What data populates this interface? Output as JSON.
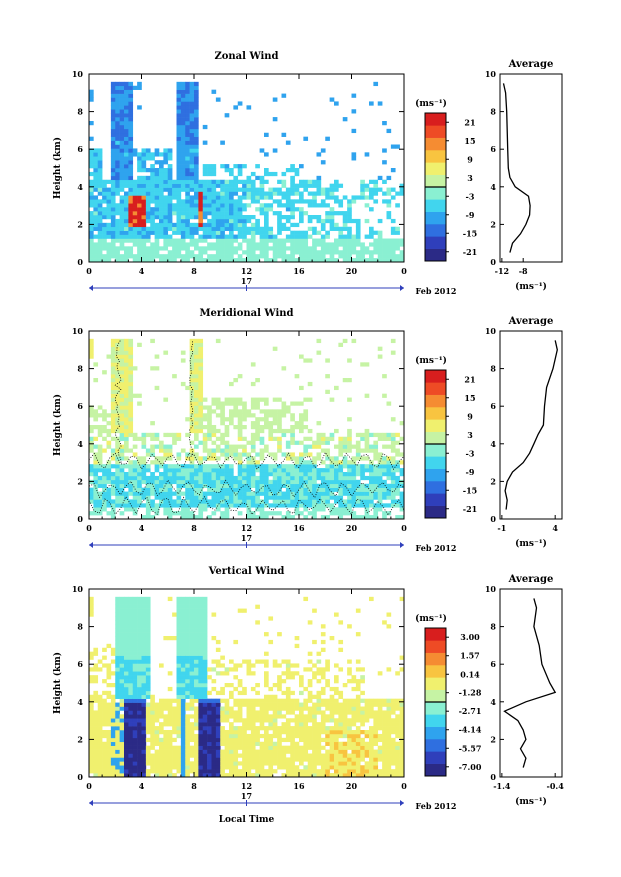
{
  "figure": {
    "x_axis_label": "Local Time",
    "date_label": "Feb 2012",
    "day_label": "17"
  },
  "colorbar_unit": "(ms⁻¹)",
  "avg_title": "Average",
  "chart_data": [
    {
      "type": "heatmap",
      "title": "Zonal Wind",
      "ylabel": "Height (km)",
      "xlim": [
        0,
        24
      ],
      "ylim": [
        0,
        10
      ],
      "x_ticks": [
        "0",
        "4",
        "8",
        "12",
        "16",
        "20",
        "0"
      ],
      "y_ticks": [
        "0",
        "2",
        "4",
        "6",
        "8",
        "10"
      ],
      "colorbar": {
        "ticks": [
          "21",
          "15",
          "9",
          "3",
          "-3",
          "-9",
          "-15",
          "-21"
        ],
        "range": [
          -24,
          24
        ]
      },
      "avg_profile": {
        "xlim": [
          -12,
          -2
        ],
        "x_ticks": [
          "-12",
          "-8"
        ],
        "height": [
          0.5,
          1.0,
          1.5,
          2.0,
          2.5,
          3.0,
          3.5,
          4.0,
          4.5,
          5.0,
          6.0,
          7.0,
          8.0,
          9.0,
          9.5
        ],
        "values": [
          -10.5,
          -10.0,
          -8.5,
          -7.5,
          -6.8,
          -6.7,
          -7.0,
          -9.5,
          -10.5,
          -10.8,
          -10.9,
          -11.0,
          -11.1,
          -11.3,
          -11.7
        ]
      }
    },
    {
      "type": "heatmap",
      "title": "Meridional Wind",
      "ylabel": "Height (km)",
      "xlim": [
        0,
        24
      ],
      "ylim": [
        0,
        10
      ],
      "x_ticks": [
        "0",
        "4",
        "8",
        "12",
        "16",
        "20",
        "0"
      ],
      "y_ticks": [
        "0",
        "2",
        "4",
        "6",
        "8",
        "10"
      ],
      "colorbar": {
        "ticks": [
          "21",
          "15",
          "9",
          "3",
          "-3",
          "-9",
          "-15",
          "-21"
        ],
        "range": [
          -24,
          24
        ]
      },
      "avg_profile": {
        "xlim": [
          -1,
          4
        ],
        "x_ticks": [
          "-1",
          "4"
        ],
        "height": [
          0.5,
          1.0,
          1.5,
          2.0,
          2.5,
          3.0,
          3.5,
          4.0,
          4.5,
          5.0,
          6.0,
          7.0,
          8.0,
          9.0,
          9.5
        ],
        "values": [
          -0.6,
          -0.5,
          -0.7,
          -0.5,
          0.0,
          1.0,
          1.6,
          2.0,
          2.4,
          2.9,
          3.0,
          3.2,
          3.8,
          4.2,
          4.0
        ]
      }
    },
    {
      "type": "heatmap",
      "title": "Vertical Wind",
      "ylabel": "Height (km)",
      "xlim": [
        0,
        24
      ],
      "ylim": [
        0,
        10
      ],
      "x_ticks": [
        "0",
        "4",
        "8",
        "12",
        "16",
        "20",
        "0"
      ],
      "y_ticks": [
        "0",
        "2",
        "4",
        "6",
        "8",
        "10"
      ],
      "colorbar": {
        "ticks": [
          "3.00",
          "1.57",
          "0.14",
          "-1.28",
          "-2.71",
          "-4.14",
          "-5.57",
          "-7.00"
        ],
        "range": [
          -7.71,
          3.71
        ]
      },
      "avg_profile": {
        "xlim": [
          -1.4,
          -0.4
        ],
        "x_ticks": [
          "-1.4",
          "-0.4"
        ],
        "height": [
          0.5,
          1.0,
          1.5,
          2.0,
          2.5,
          3.0,
          3.5,
          4.0,
          4.5,
          5.0,
          6.0,
          7.0,
          8.0,
          9.0,
          9.5
        ],
        "values": [
          -1.0,
          -0.95,
          -1.05,
          -0.95,
          -1.0,
          -1.1,
          -1.35,
          -0.95,
          -0.4,
          -0.5,
          -0.65,
          -0.7,
          -0.8,
          -0.75,
          -0.8
        ]
      }
    }
  ]
}
